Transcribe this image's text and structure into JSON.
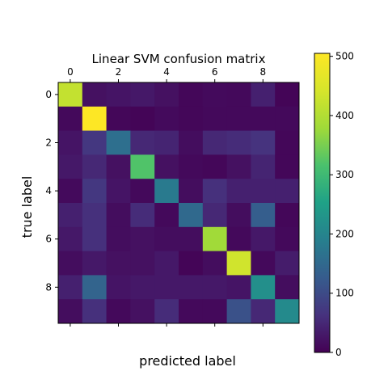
{
  "chart_data": {
    "type": "heatmap",
    "title": "Linear SVM confusion matrix",
    "xlabel": "predicted label",
    "ylabel": "true label",
    "x_ticks": [
      0,
      2,
      4,
      6,
      8
    ],
    "y_ticks": [
      0,
      2,
      4,
      6,
      8
    ],
    "x_tick_position": "top",
    "colorbar": {
      "range": [
        0,
        505
      ],
      "ticks": [
        0,
        100,
        200,
        300,
        400,
        500
      ],
      "colormap": "viridis"
    },
    "grid": false,
    "rows": [
      0,
      1,
      2,
      3,
      4,
      5,
      6,
      7,
      8,
      9
    ],
    "cols": [
      0,
      1,
      2,
      3,
      4,
      5,
      6,
      7,
      8,
      9
    ],
    "matrix": [
      [
        420,
        20,
        25,
        30,
        20,
        8,
        12,
        10,
        40,
        5
      ],
      [
        10,
        505,
        8,
        5,
        12,
        8,
        10,
        10,
        10,
        10
      ],
      [
        25,
        70,
        160,
        50,
        45,
        15,
        50,
        55,
        65,
        8
      ],
      [
        30,
        50,
        20,
        320,
        20,
        10,
        8,
        20,
        45,
        8
      ],
      [
        12,
        70,
        25,
        10,
        180,
        15,
        60,
        40,
        40,
        40
      ],
      [
        40,
        60,
        15,
        55,
        10,
        150,
        50,
        15,
        130,
        8
      ],
      [
        30,
        60,
        15,
        20,
        15,
        15,
        380,
        10,
        30,
        10
      ],
      [
        15,
        30,
        20,
        20,
        30,
        5,
        15,
        435,
        10,
        35
      ],
      [
        40,
        140,
        25,
        30,
        30,
        30,
        30,
        25,
        220,
        15
      ],
      [
        15,
        60,
        10,
        20,
        55,
        10,
        10,
        110,
        50,
        210
      ]
    ]
  }
}
